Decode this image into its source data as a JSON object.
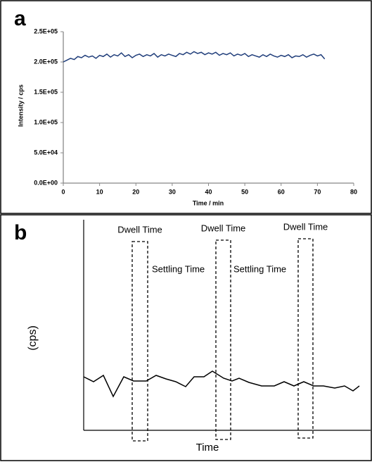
{
  "chart_data": [
    {
      "type": "line",
      "panel_label": "a",
      "x_label": "Time / min",
      "y_label": "Intensity / cps",
      "x": [
        0,
        1,
        2,
        3,
        4,
        5,
        6,
        7,
        8,
        9,
        10,
        11,
        12,
        13,
        14,
        15,
        16,
        17,
        18,
        19,
        20,
        21,
        22,
        23,
        24,
        25,
        26,
        27,
        28,
        29,
        30,
        31,
        32,
        33,
        34,
        35,
        36,
        37,
        38,
        39,
        40,
        41,
        42,
        43,
        44,
        45,
        46,
        47,
        48,
        49,
        50,
        51,
        52,
        53,
        54,
        55,
        56,
        57,
        58,
        59,
        60,
        61,
        62,
        63,
        64,
        65,
        66,
        67,
        68,
        69,
        70,
        71,
        72
      ],
      "series": [
        {
          "color": "#1f3d7a",
          "values": [
            200000,
            203000,
            206000,
            204000,
            209000,
            207000,
            211000,
            208000,
            210000,
            206000,
            211000,
            209000,
            213000,
            208000,
            212000,
            210000,
            215000,
            209000,
            212000,
            207000,
            211000,
            213000,
            209000,
            212000,
            210000,
            214000,
            208000,
            212000,
            210000,
            213000,
            211000,
            209000,
            214000,
            212000,
            216000,
            213000,
            217000,
            214000,
            216000,
            212000,
            215000,
            213000,
            216000,
            211000,
            214000,
            212000,
            215000,
            210000,
            213000,
            211000,
            214000,
            209000,
            212000,
            210000,
            208000,
            212000,
            209000,
            213000,
            210000,
            208000,
            211000,
            209000,
            212000,
            207000,
            210000,
            209000,
            212000,
            208000,
            211000,
            213000,
            210000,
            212000,
            205000
          ]
        }
      ],
      "xlim": [
        0,
        80
      ],
      "xticks": [
        0,
        10,
        20,
        30,
        40,
        50,
        60,
        70,
        80
      ],
      "ylim": [
        0,
        250000
      ],
      "yticks": [
        {
          "value": 0,
          "label": "0.0E+00"
        },
        {
          "value": 50000,
          "label": "5.0E+04"
        },
        {
          "value": 100000,
          "label": "1.0E+05"
        },
        {
          "value": 150000,
          "label": "1.5E+05"
        },
        {
          "value": 200000,
          "label": "2.0E+05"
        },
        {
          "value": 250000,
          "label": "2.5E+05"
        }
      ]
    },
    {
      "type": "line",
      "panel_label": "b",
      "x_label": "Time",
      "y_label": "(cps)",
      "x": [
        0,
        14,
        28,
        42,
        57,
        71,
        89,
        103,
        117,
        131,
        145,
        157,
        171,
        183,
        199,
        211,
        221,
        235,
        253,
        271,
        285,
        299,
        313,
        327,
        341,
        357,
        371,
        383,
        392
      ],
      "series": [
        {
          "color": "#000000",
          "values": [
            76,
            69,
            78,
            48,
            76,
            70,
            70,
            78,
            73,
            69,
            62,
            76,
            76,
            84,
            74,
            70,
            74,
            68,
            63,
            63,
            69,
            63,
            69,
            63,
            63,
            60,
            63,
            56,
            63
          ]
        }
      ],
      "xlim": [
        0,
        408
      ],
      "ylim": [
        0,
        299
      ],
      "annotations": [
        {
          "text": "Dwell Time",
          "xrange": [
            69,
            91
          ]
        },
        {
          "text": "Settling Time",
          "x": 97
        },
        {
          "text": "Dwell Time",
          "xrange": [
            188,
            209
          ]
        },
        {
          "text": "Settling Time",
          "x": 213
        },
        {
          "text": "Dwell Time",
          "xrange": [
            305,
            326
          ]
        }
      ]
    }
  ]
}
